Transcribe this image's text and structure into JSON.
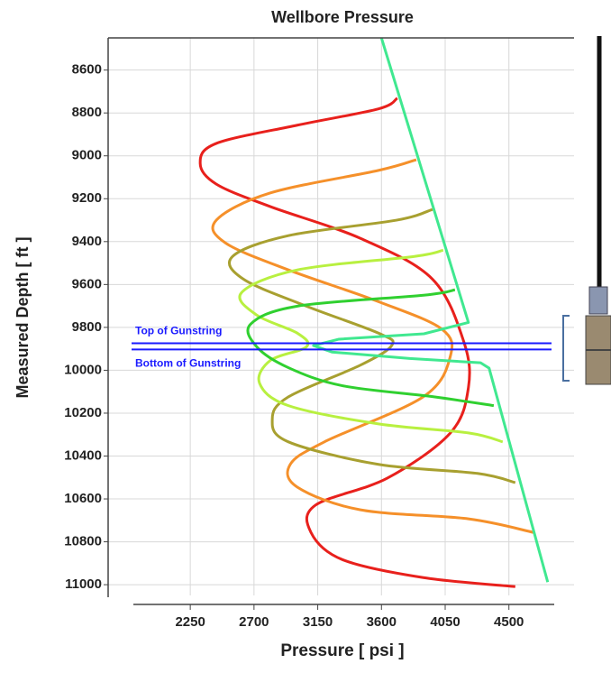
{
  "chart_data": {
    "type": "line",
    "title": "Wellbore Pressure",
    "x_label": "Pressure [ psi ]",
    "y_label": "Measured Depth [ ft ]",
    "xlim": [
      1670,
      4960
    ],
    "ylim": [
      8450,
      11050
    ],
    "y_inverted": true,
    "grid": true,
    "xticks": [
      2250,
      2700,
      3150,
      3600,
      4050,
      4500
    ],
    "yticks": [
      8600,
      8800,
      9000,
      9200,
      9400,
      9600,
      9800,
      10000,
      10200,
      10400,
      10600,
      10800,
      11000
    ],
    "series": [
      {
        "color": "#e8201c",
        "x": [
          3712,
          3579,
          3006,
          2434,
          2320,
          2434,
          2816,
          3452,
          3960,
          4183,
          4214,
          4087,
          3642,
          3134,
          3102,
          3324,
          3896,
          4545
        ],
        "y": [
          8731,
          8781,
          8857,
          8942,
          9035,
          9132,
          9237,
          9385,
          9575,
          9870,
          10081,
          10292,
          10503,
          10629,
          10756,
          10883,
          10967,
          11009
        ]
      },
      {
        "color": "#f5902a",
        "x": [
          3846,
          3579,
          2816,
          2434,
          2498,
          2943,
          3579,
          4024,
          4087,
          3897,
          3197,
          2956,
          3006,
          3452,
          4214,
          4672
        ],
        "y": [
          9018,
          9068,
          9173,
          9300,
          9406,
          9532,
          9680,
          9807,
          9933,
          10123,
          10334,
          10439,
          10545,
          10651,
          10693,
          10756
        ]
      },
      {
        "color": "#a8a030",
        "x": [
          3960,
          3706,
          2943,
          2549,
          2625,
          3070,
          3579,
          3674,
          3452,
          2943,
          2829,
          2943,
          3579,
          4278,
          4545
        ],
        "y": [
          9250,
          9300,
          9372,
          9469,
          9575,
          9701,
          9827,
          9883,
          9976,
          10124,
          10229,
          10334,
          10439,
          10481,
          10524
        ]
      },
      {
        "color": "#b8f040",
        "x": [
          4036,
          3833,
          3006,
          2612,
          2720,
          3006,
          3070,
          2816,
          2739,
          2943,
          3579,
          4214,
          4456
        ],
        "y": [
          9440,
          9469,
          9532,
          9638,
          9743,
          9827,
          9891,
          9954,
          10060,
          10165,
          10250,
          10292,
          10334
        ]
      },
      {
        "color": "#30d030",
        "x": [
          4119,
          3897,
          3006,
          2676,
          2720,
          2943,
          3324,
          3960,
          4393
        ],
        "y": [
          9625,
          9650,
          9701,
          9785,
          9891,
          9988,
          10072,
          10123,
          10165
        ]
      },
      {
        "color": "#40e890",
        "x": [
          3600,
          4214,
          3900,
          3300,
          3120,
          3250,
          3800,
          4300,
          4360,
          4774
        ],
        "y": [
          8450,
          9777,
          9830,
          9855,
          9885,
          9915,
          9945,
          9965,
          9990,
          10988
        ]
      }
    ],
    "annotations": [
      {
        "text": "Top of Gunstring",
        "y": 9874
      },
      {
        "text": "Bottom of Gunstring",
        "y": 9903
      }
    ]
  }
}
